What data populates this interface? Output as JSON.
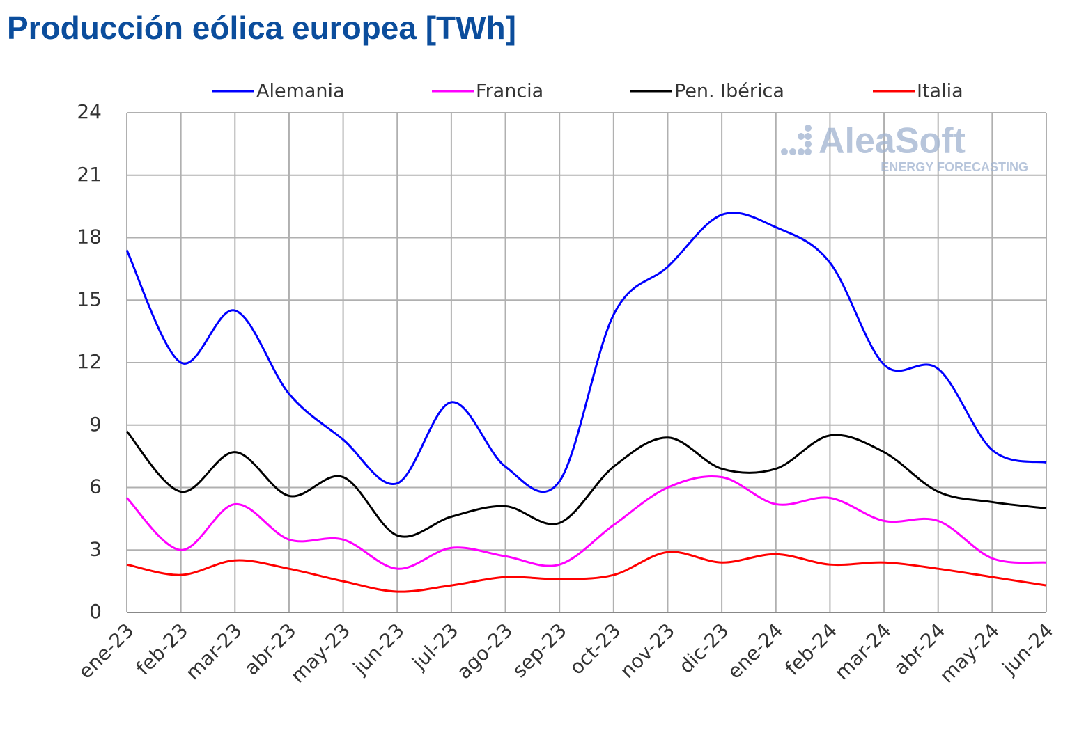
{
  "chart_data": {
    "type": "line",
    "title": "Producción eólica europea [TWh]",
    "watermark": {
      "brand": "AleaSoft",
      "tagline": "ENERGY FORECASTING"
    },
    "categories": [
      "ene-23",
      "feb-23",
      "mar-23",
      "abr-23",
      "may-23",
      "jun-23",
      "jul-23",
      "ago-23",
      "sep-23",
      "oct-23",
      "nov-23",
      "dic-23",
      "ene-24",
      "feb-24",
      "mar-24",
      "abr-24",
      "may-24",
      "jun-24"
    ],
    "series": [
      {
        "name": "Alemania",
        "color": "#0000ff",
        "values": [
          17.4,
          12.0,
          14.5,
          10.5,
          8.3,
          6.2,
          10.1,
          7.0,
          6.3,
          14.3,
          16.6,
          19.1,
          18.5,
          16.8,
          11.9,
          11.7,
          7.8,
          7.2
        ]
      },
      {
        "name": "Francia",
        "color": "#ff00ff",
        "values": [
          5.5,
          3.0,
          5.2,
          3.5,
          3.5,
          2.1,
          3.1,
          2.7,
          2.3,
          4.2,
          6.0,
          6.5,
          5.2,
          5.5,
          4.4,
          4.4,
          2.6,
          2.4
        ]
      },
      {
        "name": "Pen. Ibérica",
        "color": "#000000",
        "values": [
          8.7,
          5.8,
          7.7,
          5.6,
          6.5,
          3.7,
          4.6,
          5.1,
          4.3,
          7.0,
          8.4,
          6.9,
          6.9,
          8.5,
          7.7,
          5.8,
          5.3,
          5.0
        ]
      },
      {
        "name": "Italia",
        "color": "#ff0000",
        "values": [
          2.3,
          1.8,
          2.5,
          2.1,
          1.5,
          1.0,
          1.3,
          1.7,
          1.6,
          1.8,
          2.9,
          2.4,
          2.8,
          2.3,
          2.4,
          2.1,
          1.7,
          1.3
        ]
      }
    ],
    "ylim": [
      0,
      24
    ],
    "yticks": [
      0,
      3,
      6,
      9,
      12,
      15,
      18,
      21,
      24
    ],
    "grid": true,
    "legend": "top",
    "smooth": true
  }
}
